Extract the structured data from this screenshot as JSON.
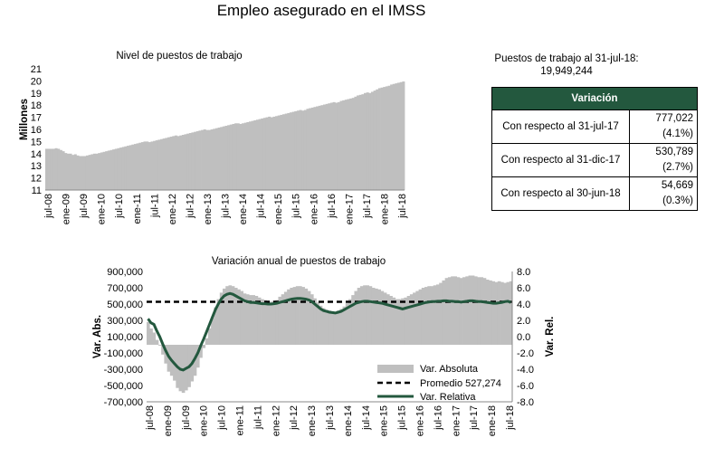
{
  "title": "Empleo asegurado en el IMSS",
  "summary": {
    "line1": "Puestos de trabajo al 31-jul-18:",
    "line2": "19,949,244"
  },
  "table": {
    "header": "Variación",
    "rows": [
      {
        "label": "Con respecto al 31-jul-17",
        "abs": "777,022",
        "pct": "(4.1%)"
      },
      {
        "label": "Con respecto al 31-dic-17",
        "abs": "530,789",
        "pct": "(2.7%)"
      },
      {
        "label": "Con respecto al 30-jun-18",
        "abs": "54,669",
        "pct": "(0.3%)"
      }
    ]
  },
  "colors": {
    "bars": "#bfbfbf",
    "relative_line": "#23583e",
    "average_line": "#000000",
    "table_header": "#23583e"
  },
  "chart_data": [
    {
      "type": "bar",
      "title": "Nivel de puestos de trabajo",
      "ylabel": "Millones",
      "ylim": [
        11,
        21
      ],
      "yticks": [
        "11",
        "12",
        "13",
        "14",
        "15",
        "16",
        "17",
        "18",
        "19",
        "20",
        "21"
      ],
      "x_tick_labels": [
        "jul-08",
        "ene-09",
        "jul-09",
        "ene-10",
        "jul-10",
        "ene-11",
        "jul-11",
        "ene-12",
        "jul-12",
        "ene-13",
        "jul-13",
        "ene-14",
        "jul-14",
        "ene-15",
        "jul-15",
        "ene-16",
        "jul-16",
        "ene-17",
        "jul-17",
        "ene-18",
        "jul-18"
      ],
      "values": [
        14.4,
        14.4,
        14.4,
        14.4,
        14.45,
        14.4,
        14.3,
        14.2,
        14.05,
        14.0,
        14.0,
        13.9,
        13.95,
        13.85,
        13.8,
        13.8,
        13.8,
        13.85,
        13.9,
        13.95,
        14.0,
        14.0,
        14.05,
        14.1,
        14.15,
        14.2,
        14.25,
        14.3,
        14.35,
        14.4,
        14.45,
        14.5,
        14.55,
        14.6,
        14.65,
        14.7,
        14.75,
        14.8,
        14.85,
        14.9,
        14.95,
        15.0,
        15.0,
        14.95,
        15.0,
        15.05,
        15.1,
        15.15,
        15.2,
        15.25,
        15.3,
        15.35,
        15.4,
        15.45,
        15.5,
        15.45,
        15.5,
        15.55,
        15.6,
        15.65,
        15.7,
        15.75,
        15.8,
        15.85,
        15.9,
        15.95,
        16.0,
        15.95,
        15.95,
        16.0,
        16.05,
        16.1,
        16.15,
        16.2,
        16.25,
        16.3,
        16.35,
        16.4,
        16.45,
        16.5,
        16.5,
        16.45,
        16.5,
        16.55,
        16.6,
        16.65,
        16.7,
        16.75,
        16.8,
        16.85,
        16.9,
        16.95,
        17.0,
        17.05,
        17.0,
        17.05,
        17.1,
        17.15,
        17.2,
        17.25,
        17.3,
        17.35,
        17.4,
        17.45,
        17.5,
        17.55,
        17.6,
        17.55,
        17.6,
        17.7,
        17.75,
        17.8,
        17.85,
        17.9,
        17.95,
        18.0,
        18.05,
        18.1,
        18.15,
        18.2,
        18.25,
        18.2,
        18.25,
        18.35,
        18.4,
        18.45,
        18.5,
        18.55,
        18.6,
        18.7,
        18.8,
        18.85,
        18.9,
        19.0,
        19.05,
        19.0,
        19.1,
        19.2,
        19.3,
        19.4,
        19.45,
        19.5,
        19.55,
        19.6,
        19.7,
        19.75,
        19.8,
        19.85,
        19.9,
        19.95
      ]
    },
    {
      "type": "bar",
      "title": "Variación anual de puestos de trabajo",
      "ylabel": "Var. Abs.",
      "ylabel_right": "Var. Rel.",
      "ylim": [
        -700000,
        900000
      ],
      "ylim_right": [
        -8.0,
        8.0
      ],
      "yticks": [
        "900,000",
        "700,000",
        "500,000",
        "300,000",
        "100,000",
        "-100,000",
        "-300,000",
        "-500,000",
        "-700,000"
      ],
      "yticks_right": [
        "8.0",
        "6.0",
        "4.0",
        "2.0",
        "0.0",
        "-2.0",
        "-4.0",
        "-6.0",
        "-8.0"
      ],
      "x_tick_labels": [
        "jul-08",
        "ene-09",
        "jul-09",
        "ene-10",
        "jul-10",
        "ene-11",
        "jul-11",
        "ene-12",
        "jul-12",
        "ene-13",
        "jul-13",
        "ene-14",
        "jul-14",
        "ene-15",
        "jul-15",
        "ene-16",
        "jul-16",
        "ene-17",
        "jul-17",
        "ene-18",
        "jul-18"
      ],
      "legend": [
        "Var. Absoluta",
        "Promedio 527,274",
        "Var. Relativa"
      ],
      "legend_position": "bottom-right",
      "average": 527274,
      "absolute": [
        280000,
        200000,
        150000,
        60000,
        -10000,
        -120000,
        -230000,
        -330000,
        -380000,
        -440000,
        -530000,
        -570000,
        -590000,
        -560000,
        -520000,
        -450000,
        -380000,
        -280000,
        -160000,
        -40000,
        80000,
        200000,
        330000,
        460000,
        560000,
        640000,
        690000,
        720000,
        730000,
        720000,
        700000,
        680000,
        660000,
        630000,
        620000,
        610000,
        610000,
        600000,
        580000,
        560000,
        550000,
        540000,
        530000,
        540000,
        550000,
        590000,
        620000,
        650000,
        680000,
        700000,
        710000,
        720000,
        720000,
        710000,
        690000,
        660000,
        620000,
        570000,
        520000,
        480000,
        450000,
        430000,
        420000,
        410000,
        400000,
        420000,
        440000,
        470000,
        510000,
        560000,
        610000,
        660000,
        700000,
        720000,
        730000,
        730000,
        720000,
        700000,
        690000,
        680000,
        660000,
        640000,
        620000,
        600000,
        580000,
        560000,
        560000,
        570000,
        580000,
        600000,
        620000,
        640000,
        660000,
        680000,
        700000,
        710000,
        720000,
        720000,
        730000,
        740000,
        760000,
        790000,
        820000,
        830000,
        840000,
        840000,
        830000,
        820000,
        830000,
        840000,
        850000,
        850000,
        840000,
        830000,
        830000,
        820000,
        800000,
        790000,
        780000,
        770000,
        780000,
        770000,
        760000,
        770000,
        780000
      ],
      "relative": [
        2.2,
        1.7,
        1.5,
        0.7,
        0.0,
        -0.9,
        -1.7,
        -2.4,
        -2.9,
        -3.3,
        -3.7,
        -4.0,
        -4.1,
        -3.9,
        -3.7,
        -3.3,
        -2.7,
        -2.0,
        -1.1,
        -0.3,
        0.6,
        1.5,
        2.4,
        3.3,
        4.0,
        4.6,
        5.0,
        5.2,
        5.3,
        5.2,
        5.0,
        4.8,
        4.6,
        4.4,
        4.3,
        4.2,
        4.2,
        4.15,
        4.1,
        4.05,
        4.05,
        4.0,
        4.0,
        4.05,
        4.1,
        4.2,
        4.3,
        4.4,
        4.5,
        4.6,
        4.65,
        4.7,
        4.7,
        4.65,
        4.6,
        4.5,
        4.3,
        4.0,
        3.7,
        3.4,
        3.2,
        3.1,
        3.0,
        2.95,
        2.9,
        3.0,
        3.1,
        3.3,
        3.5,
        3.7,
        3.9,
        4.1,
        4.2,
        4.3,
        4.35,
        4.35,
        4.3,
        4.25,
        4.2,
        4.15,
        4.1,
        4.0,
        3.9,
        3.8,
        3.7,
        3.6,
        3.5,
        3.4,
        3.5,
        3.6,
        3.7,
        3.8,
        3.9,
        4.0,
        4.1,
        4.2,
        4.25,
        4.3,
        4.3,
        4.35,
        4.35,
        4.4,
        4.4,
        4.35,
        4.35,
        4.3,
        4.3,
        4.25,
        4.3,
        4.35,
        4.4,
        4.4,
        4.35,
        4.3,
        4.3,
        4.25,
        4.2,
        4.15,
        4.1,
        4.1,
        4.15,
        4.2,
        4.3,
        4.35,
        4.2
      ]
    }
  ]
}
